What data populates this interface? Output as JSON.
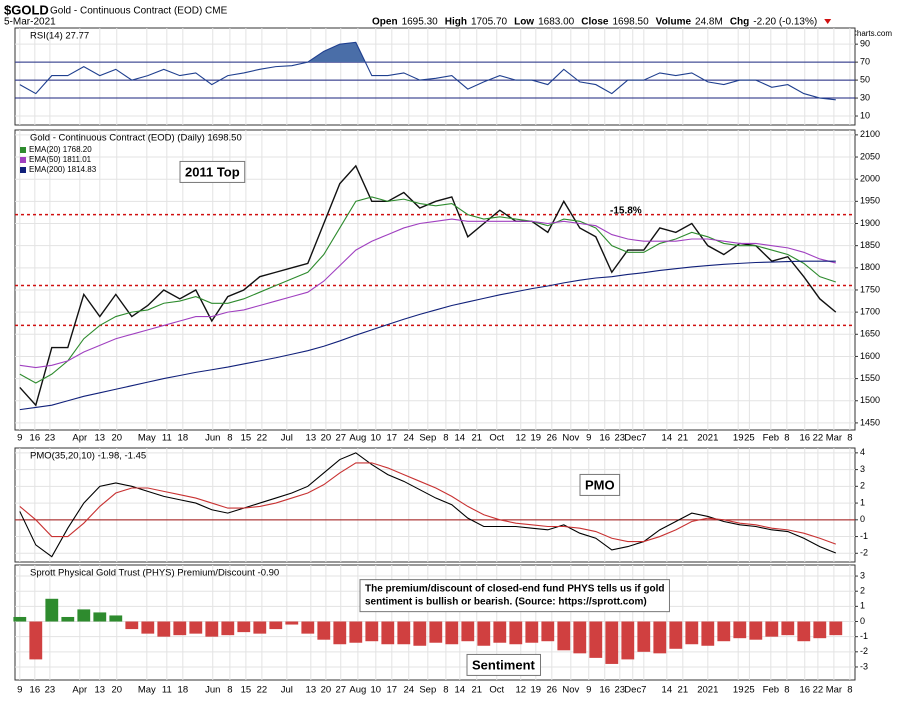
{
  "header": {
    "symbol": "$GOLD",
    "name": "Gold - Continuous Contract (EOD) CME",
    "date": "5-Mar-2021",
    "copyright": "© StockCharts.com",
    "quote": [
      {
        "label": "Open",
        "value": "1695.30"
      },
      {
        "label": "High",
        "value": "1705.70"
      },
      {
        "label": "Low",
        "value": "1683.00"
      },
      {
        "label": "Close",
        "value": "1698.50"
      },
      {
        "label": "Volume",
        "value": "24.8M"
      },
      {
        "label": "Chg",
        "value": "-2.20 (-0.13%)"
      }
    ]
  },
  "chart_data": [
    {
      "type": "line",
      "title": "RSI(14) 27.77",
      "ylim": [
        0,
        108
      ],
      "yticks": [
        90,
        70,
        50,
        30,
        10
      ],
      "levels": [
        70,
        50,
        30
      ],
      "level_color": "#1a237e",
      "fill_above": 70,
      "fill_color": "#4a6ea8",
      "xlim": [
        -0.3,
        52.2
      ],
      "series": [
        {
          "color": "#1f3f8f",
          "values": [
            45,
            35,
            55,
            55,
            65,
            55,
            62,
            50,
            55,
            62,
            55,
            58,
            45,
            55,
            58,
            62,
            65,
            66,
            70,
            82,
            90,
            92,
            55,
            55,
            58,
            50,
            52,
            55,
            40,
            48,
            55,
            50,
            50,
            45,
            62,
            48,
            45,
            35,
            50,
            50,
            58,
            55,
            58,
            48,
            45,
            50,
            50,
            42,
            45,
            35,
            30,
            28
          ]
        }
      ]
    },
    {
      "type": "line",
      "title": "Gold - Continuous Contract (EOD) (Daily) 1698.50",
      "ylim": [
        1434,
        2111
      ],
      "yticks": [
        1450,
        1500,
        1550,
        1600,
        1650,
        1700,
        1750,
        1800,
        1850,
        1900,
        1950,
        2000,
        2050,
        2100
      ],
      "levels": [
        1920,
        1760,
        1670
      ],
      "level_color": "#d01010",
      "annotations": [
        "2011 Top",
        "-15.8%"
      ],
      "xlim": [
        -0.3,
        52.2
      ],
      "xticks": [
        {
          "value": 0,
          "label": "9"
        },
        {
          "value": 0.94,
          "label": "16"
        },
        {
          "value": 1.88,
          "label": "23"
        },
        {
          "value": 3.75,
          "label": "Apr"
        },
        {
          "value": 5,
          "label": "13"
        },
        {
          "value": 6.06,
          "label": "20"
        },
        {
          "value": 7.94,
          "label": "May"
        },
        {
          "value": 9.19,
          "label": "11"
        },
        {
          "value": 10.19,
          "label": "18"
        },
        {
          "value": 12.06,
          "label": "Jun"
        },
        {
          "value": 13.13,
          "label": "8"
        },
        {
          "value": 14.13,
          "label": "15"
        },
        {
          "value": 15.13,
          "label": "22"
        },
        {
          "value": 16.69,
          "label": "Jul"
        },
        {
          "value": 18.19,
          "label": "13"
        },
        {
          "value": 19.13,
          "label": "20"
        },
        {
          "value": 20.06,
          "label": "27"
        },
        {
          "value": 21.13,
          "label": "Aug"
        },
        {
          "value": 22.25,
          "label": "10"
        },
        {
          "value": 23.25,
          "label": "17"
        },
        {
          "value": 24.31,
          "label": "24"
        },
        {
          "value": 25.5,
          "label": "Sep"
        },
        {
          "value": 26.63,
          "label": "8"
        },
        {
          "value": 27.5,
          "label": "14"
        },
        {
          "value": 28.56,
          "label": "21"
        },
        {
          "value": 29.81,
          "label": "Oct"
        },
        {
          "value": 31.31,
          "label": "12"
        },
        {
          "value": 32.25,
          "label": "19"
        },
        {
          "value": 33.25,
          "label": "26"
        },
        {
          "value": 34.44,
          "label": "Nov"
        },
        {
          "value": 35.56,
          "label": "9"
        },
        {
          "value": 36.56,
          "label": "16"
        },
        {
          "value": 37.5,
          "label": "23"
        },
        {
          "value": 38.31,
          "label": "Dec"
        },
        {
          "value": 39,
          "label": "7"
        },
        {
          "value": 40.44,
          "label": "14"
        },
        {
          "value": 41.44,
          "label": "21"
        },
        {
          "value": 43,
          "label": "2021"
        },
        {
          "value": 44.9,
          "label": "19"
        },
        {
          "value": 45.6,
          "label": "25"
        },
        {
          "value": 46.94,
          "label": "Feb"
        },
        {
          "value": 47.94,
          "label": "8"
        },
        {
          "value": 49.06,
          "label": "16"
        },
        {
          "value": 49.88,
          "label": "22"
        },
        {
          "value": 50.88,
          "label": "Mar"
        },
        {
          "value": 51.88,
          "label": "8"
        }
      ],
      "series": [
        {
          "name": "Gold - Continuous Contract (EOD) (Daily) 1698.50",
          "color": "#111111",
          "values": [
            1530,
            1490,
            1620,
            1620,
            1740,
            1690,
            1740,
            1690,
            1715,
            1750,
            1730,
            1750,
            1680,
            1735,
            1750,
            1780,
            1790,
            1800,
            1810,
            1900,
            1990,
            2030,
            1950,
            1950,
            1970,
            1935,
            1950,
            1960,
            1870,
            1900,
            1930,
            1905,
            1905,
            1880,
            1950,
            1890,
            1870,
            1790,
            1840,
            1840,
            1890,
            1880,
            1900,
            1850,
            1830,
            1855,
            1850,
            1815,
            1825,
            1780,
            1730,
            1700
          ]
        },
        {
          "name": "EMA(20) 1768.20",
          "color": "#2e8b2e",
          "values": [
            1560,
            1540,
            1560,
            1590,
            1640,
            1670,
            1690,
            1700,
            1705,
            1720,
            1725,
            1735,
            1720,
            1720,
            1730,
            1745,
            1760,
            1775,
            1790,
            1830,
            1890,
            1950,
            1960,
            1950,
            1955,
            1945,
            1940,
            1945,
            1920,
            1910,
            1915,
            1910,
            1905,
            1895,
            1910,
            1905,
            1890,
            1850,
            1835,
            1835,
            1855,
            1865,
            1880,
            1870,
            1855,
            1850,
            1850,
            1840,
            1830,
            1810,
            1780,
            1768
          ]
        },
        {
          "name": "EMA(50) 1811.01",
          "color": "#a040c0",
          "values": [
            1580,
            1575,
            1580,
            1590,
            1610,
            1625,
            1640,
            1650,
            1660,
            1670,
            1680,
            1690,
            1690,
            1700,
            1705,
            1715,
            1725,
            1735,
            1745,
            1770,
            1805,
            1840,
            1860,
            1875,
            1890,
            1900,
            1905,
            1910,
            1905,
            1905,
            1905,
            1905,
            1905,
            1900,
            1905,
            1900,
            1895,
            1875,
            1865,
            1860,
            1860,
            1860,
            1865,
            1865,
            1860,
            1855,
            1855,
            1850,
            1845,
            1835,
            1820,
            1811
          ]
        },
        {
          "name": "EMA(200) 1814.83",
          "color": "#10207a",
          "values": [
            1480,
            1485,
            1490,
            1500,
            1510,
            1518,
            1526,
            1534,
            1542,
            1550,
            1557,
            1564,
            1570,
            1576,
            1583,
            1590,
            1597,
            1605,
            1613,
            1623,
            1635,
            1648,
            1660,
            1672,
            1684,
            1695,
            1705,
            1715,
            1723,
            1731,
            1739,
            1746,
            1753,
            1759,
            1766,
            1772,
            1777,
            1780,
            1785,
            1789,
            1794,
            1798,
            1802,
            1805,
            1808,
            1810,
            1812,
            1813,
            1814,
            1815,
            1815,
            1815
          ]
        }
      ]
    },
    {
      "type": "line",
      "title": "PMO(35,20,10) -1.98, -1.45",
      "ylim": [
        -2.52,
        4.29
      ],
      "yticks": [
        4,
        3,
        2,
        1,
        0,
        -1,
        -2
      ],
      "levels": [
        0
      ],
      "level_color": "#a01010",
      "annotations": [
        "PMO"
      ],
      "xlim": [
        -0.3,
        52.2
      ],
      "series": [
        {
          "color": "#000000",
          "values": [
            0.5,
            -1.5,
            -2.2,
            -0.5,
            1.0,
            2.0,
            2.2,
            2.0,
            1.7,
            1.4,
            1.2,
            1.0,
            0.6,
            0.4,
            0.7,
            1.0,
            1.3,
            1.6,
            2.0,
            2.8,
            3.6,
            4.0,
            3.3,
            2.7,
            2.3,
            1.8,
            1.3,
            0.9,
            0.1,
            -0.4,
            -0.4,
            -0.4,
            -0.5,
            -0.6,
            -0.3,
            -0.8,
            -1.1,
            -1.8,
            -1.6,
            -1.3,
            -0.6,
            -0.1,
            0.4,
            0.2,
            -0.1,
            -0.3,
            -0.4,
            -0.6,
            -0.7,
            -1.1,
            -1.6,
            -1.98
          ]
        },
        {
          "color": "#c83232",
          "values": [
            0.8,
            0.0,
            -1.0,
            -1.0,
            -0.2,
            0.8,
            1.6,
            1.9,
            1.9,
            1.7,
            1.5,
            1.3,
            1.0,
            0.7,
            0.7,
            0.8,
            1.0,
            1.3,
            1.6,
            2.1,
            2.8,
            3.4,
            3.4,
            3.1,
            2.7,
            2.3,
            1.9,
            1.4,
            0.8,
            0.3,
            0.0,
            -0.2,
            -0.3,
            -0.4,
            -0.4,
            -0.5,
            -0.7,
            -1.1,
            -1.3,
            -1.3,
            -1.0,
            -0.6,
            -0.1,
            0.1,
            0.0,
            -0.2,
            -0.3,
            -0.5,
            -0.6,
            -0.8,
            -1.1,
            -1.45
          ]
        }
      ]
    },
    {
      "type": "bar",
      "title": "Sprott Physical Gold Trust (PHYS) Premium/Discount -0.90",
      "ylim": [
        -3.86,
        3.73
      ],
      "yticks": [
        3,
        2,
        1,
        0,
        -1,
        -2,
        -3
      ],
      "annotations": [
        "The premium/discount of closed-end fund PHYS tells us if gold",
        "sentiment is bullish or bearish. (Source: https://sprott.com)",
        "Sentiment"
      ],
      "xlim": [
        -0.3,
        52.2
      ],
      "color_positive": "#2e8b2e",
      "color_negative": "#d04040",
      "values": [
        0.3,
        -2.5,
        1.5,
        0.3,
        0.8,
        0.6,
        0.4,
        -0.5,
        -0.8,
        -1.0,
        -0.9,
        -0.8,
        -1.0,
        -0.9,
        -0.7,
        -0.8,
        -0.5,
        -0.2,
        -0.8,
        -1.2,
        -1.5,
        -1.4,
        -1.3,
        -1.5,
        -1.5,
        -1.6,
        -1.4,
        -1.5,
        -1.3,
        -1.6,
        -1.4,
        -1.5,
        -1.4,
        -1.3,
        -1.9,
        -2.1,
        -2.4,
        -2.8,
        -2.5,
        -2.0,
        -2.1,
        -1.8,
        -1.5,
        -1.6,
        -1.3,
        -1.1,
        -1.2,
        -1.0,
        -0.9,
        -1.3,
        -1.1,
        -0.9
      ]
    }
  ]
}
